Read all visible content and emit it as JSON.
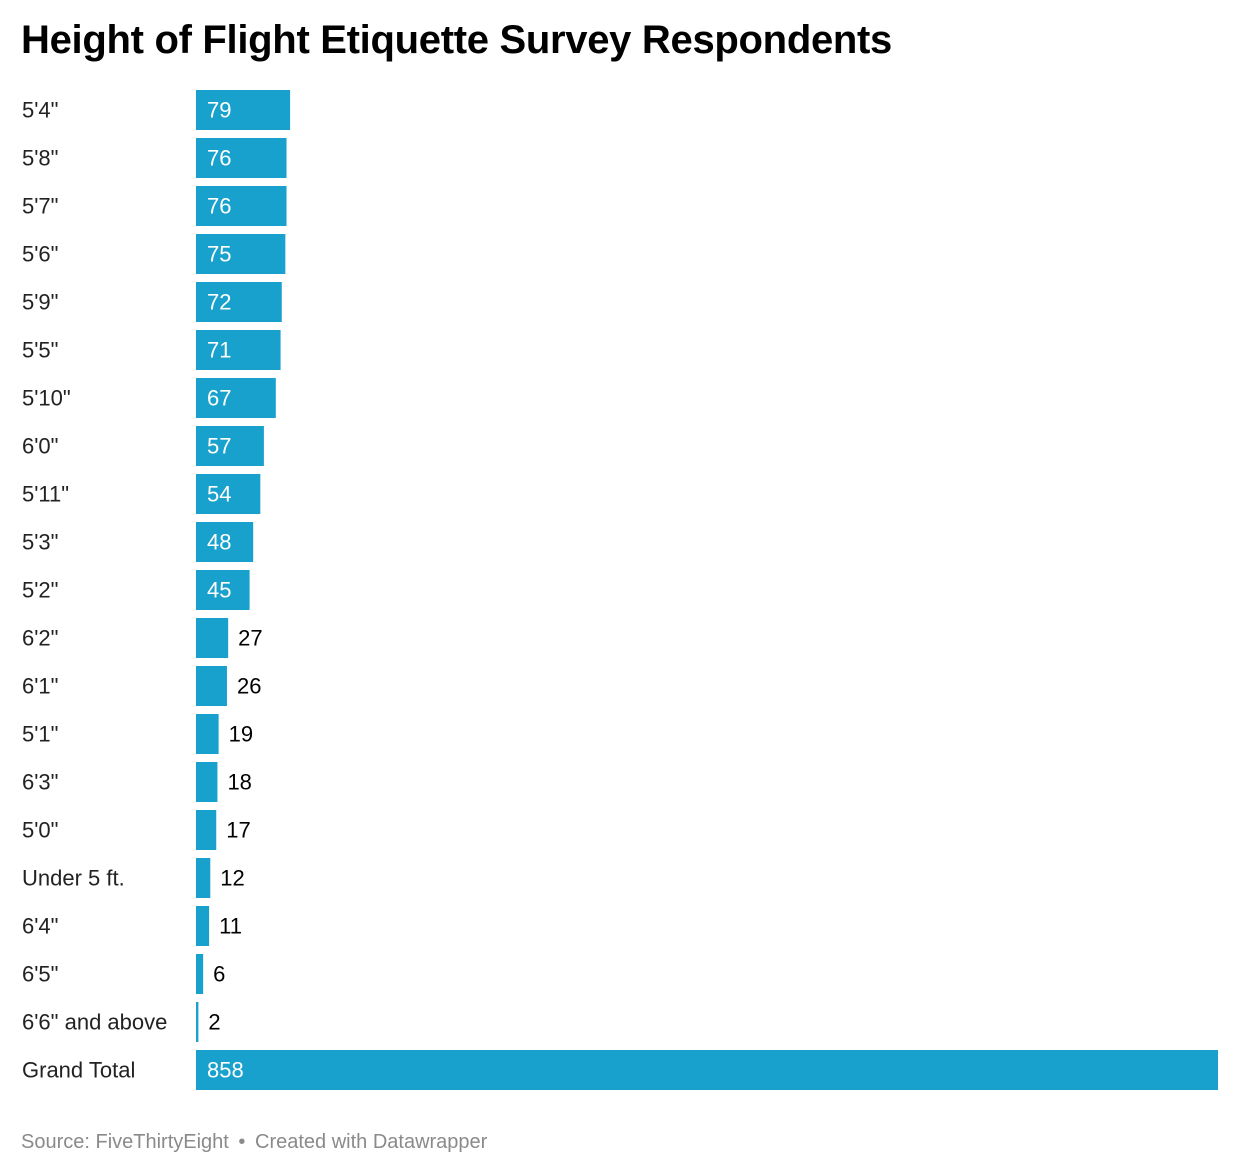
{
  "chart_data": {
    "type": "bar",
    "orientation": "horizontal",
    "title": "Height of Flight Etiquette Survey Respondents",
    "categories": [
      "5'4\"",
      "5'8\"",
      "5'7\"",
      "5'6\"",
      "5'9\"",
      "5'5\"",
      "5'10\"",
      "6'0\"",
      "5'11\"",
      "5'3\"",
      "5'2\"",
      "6'2\"",
      "6'1\"",
      "5'1\"",
      "6'3\"",
      "5'0\"",
      "Under 5 ft.",
      "6'4\"",
      "6'5\"",
      "6'6\" and above",
      "Grand Total"
    ],
    "values": [
      79,
      76,
      76,
      75,
      72,
      71,
      67,
      57,
      54,
      48,
      45,
      27,
      26,
      19,
      18,
      17,
      12,
      11,
      6,
      2,
      858
    ],
    "xlim": [
      0,
      858
    ],
    "grid": false,
    "bar_color": "#18a1cd",
    "label_color_inside": "#ffffff",
    "label_color_outside": "#000000"
  },
  "footer": {
    "source": "Source: FiveThirtyEight",
    "separator": "•",
    "credit": "Created with Datawrapper"
  }
}
